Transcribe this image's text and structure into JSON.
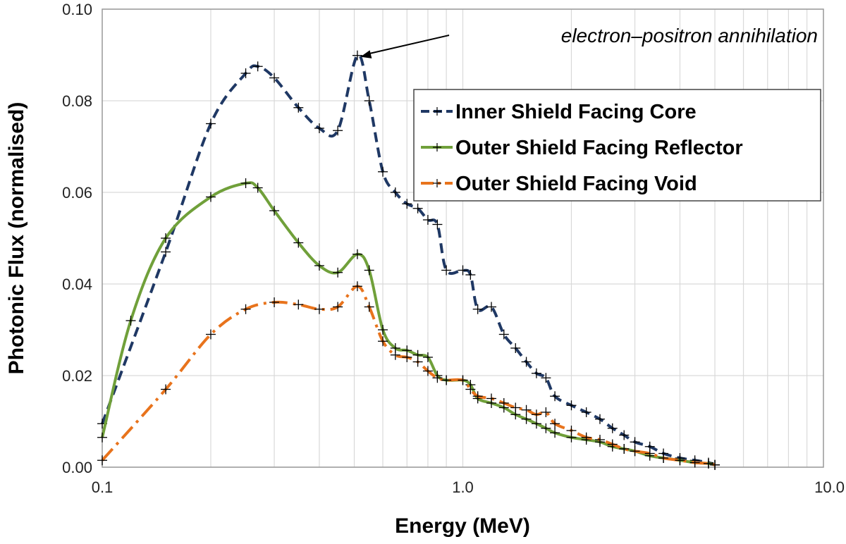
{
  "chart_data": {
    "type": "line",
    "title": "",
    "xlabel": "Energy (MeV)",
    "ylabel": "Photonic Flux (normalised)",
    "xscale": "log",
    "xlim": [
      0.1,
      10.0
    ],
    "ylim": [
      0.0,
      0.1
    ],
    "xticks": [
      0.1,
      1.0,
      10.0
    ],
    "xtick_labels": [
      "0.1",
      "1.0",
      "10.0"
    ],
    "yticks": [
      0.0,
      0.02,
      0.04,
      0.06,
      0.08,
      0.1
    ],
    "ytick_labels": [
      "0.00",
      "0.02",
      "0.04",
      "0.06",
      "0.08",
      "0.10"
    ],
    "grid": true,
    "legend_position": "top-right",
    "annotation": {
      "text": "electron–positron annihilation",
      "x": 0.511,
      "y": 0.0899
    },
    "series": [
      {
        "name": "Inner Shield Facing Core",
        "color": "#1f3864",
        "line_style": "dashed",
        "x": [
          0.1,
          0.15,
          0.2,
          0.25,
          0.27,
          0.3,
          0.35,
          0.4,
          0.45,
          0.51,
          0.55,
          0.6,
          0.65,
          0.7,
          0.75,
          0.8,
          0.85,
          0.9,
          1.0,
          1.05,
          1.1,
          1.2,
          1.3,
          1.4,
          1.5,
          1.6,
          1.7,
          1.8,
          2.0,
          2.2,
          2.4,
          2.6,
          2.8,
          3.0,
          3.3,
          3.6,
          4.0,
          4.4,
          4.8,
          5.0
        ],
        "y": [
          0.0095,
          0.047,
          0.075,
          0.086,
          0.0875,
          0.085,
          0.0785,
          0.074,
          0.0735,
          0.0899,
          0.08,
          0.0645,
          0.06,
          0.0575,
          0.0565,
          0.054,
          0.053,
          0.043,
          0.043,
          0.042,
          0.0345,
          0.035,
          0.029,
          0.026,
          0.023,
          0.0205,
          0.0195,
          0.0155,
          0.0135,
          0.012,
          0.0105,
          0.0085,
          0.007,
          0.0055,
          0.0045,
          0.003,
          0.002,
          0.0015,
          0.001,
          0.0005
        ]
      },
      {
        "name": "Outer Shield Facing Reflector",
        "color": "#70a03a",
        "line_style": "solid",
        "x": [
          0.1,
          0.12,
          0.15,
          0.2,
          0.25,
          0.27,
          0.3,
          0.35,
          0.4,
          0.45,
          0.51,
          0.55,
          0.6,
          0.65,
          0.7,
          0.75,
          0.8,
          0.85,
          0.9,
          1.0,
          1.05,
          1.1,
          1.2,
          1.3,
          1.4,
          1.5,
          1.6,
          1.7,
          1.8,
          2.0,
          2.2,
          2.4,
          2.6,
          2.8,
          3.0,
          3.3,
          3.6,
          4.0,
          4.4,
          4.8,
          5.0
        ],
        "y": [
          0.0065,
          0.032,
          0.05,
          0.059,
          0.062,
          0.061,
          0.056,
          0.049,
          0.044,
          0.0425,
          0.0465,
          0.043,
          0.03,
          0.026,
          0.0255,
          0.0245,
          0.024,
          0.02,
          0.019,
          0.019,
          0.018,
          0.015,
          0.014,
          0.013,
          0.0115,
          0.0105,
          0.0095,
          0.0085,
          0.0075,
          0.0065,
          0.006,
          0.0055,
          0.0045,
          0.004,
          0.0035,
          0.0025,
          0.002,
          0.0015,
          0.001,
          0.0008,
          0.0005
        ]
      },
      {
        "name": "Outer Shield Facing Void",
        "color": "#e8731c",
        "line_style": "dash-dot",
        "x": [
          0.1,
          0.15,
          0.2,
          0.25,
          0.3,
          0.35,
          0.4,
          0.45,
          0.51,
          0.55,
          0.6,
          0.65,
          0.7,
          0.75,
          0.8,
          0.85,
          0.9,
          1.0,
          1.05,
          1.1,
          1.2,
          1.3,
          1.4,
          1.5,
          1.6,
          1.7,
          1.8,
          2.0,
          2.2,
          2.4,
          2.6,
          2.8,
          3.0,
          3.3,
          3.6,
          4.0,
          4.4,
          4.8,
          5.0
        ],
        "y": [
          0.0015,
          0.017,
          0.029,
          0.0345,
          0.036,
          0.0355,
          0.0345,
          0.035,
          0.0395,
          0.035,
          0.0275,
          0.0245,
          0.024,
          0.023,
          0.021,
          0.0195,
          0.019,
          0.019,
          0.017,
          0.0155,
          0.015,
          0.014,
          0.013,
          0.0125,
          0.0115,
          0.012,
          0.0095,
          0.008,
          0.0065,
          0.006,
          0.005,
          0.004,
          0.0035,
          0.003,
          0.002,
          0.0015,
          0.001,
          0.0008,
          0.0005
        ]
      }
    ]
  }
}
